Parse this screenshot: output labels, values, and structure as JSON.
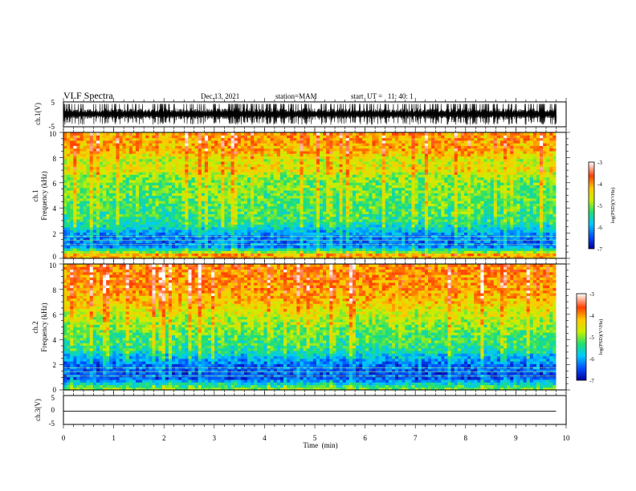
{
  "header": {
    "title": "VLF Spectra",
    "date": "Dec.13, 2021",
    "station": "station=MAM",
    "start_ut": "start  UT =   11: 40: 1"
  },
  "chart_data": [
    {
      "type": "line",
      "panel": "ch1-waveform",
      "ylabel": "ch.1(V)",
      "ylim": [
        -5,
        5
      ],
      "yticks": [
        "5",
        "-5"
      ],
      "signal": "dense impulsive VLF waveform filling approx. -4 to +4 V"
    },
    {
      "type": "heatmap",
      "panel": "ch1-spectrogram",
      "ylabel_line1": "ch.1",
      "ylabel_line2": "Frequency  (kHz)",
      "ylim": [
        0,
        10
      ],
      "yticks": [
        "0",
        "2",
        "4",
        "6",
        "8",
        "10"
      ],
      "colorbar": {
        "label": "log(PSD)(V²/Hz)",
        "range": [
          -7,
          -3
        ],
        "ticks": [
          "-3",
          "-4",
          "-5",
          "-6",
          "-7"
        ],
        "colors": [
          "#0000a0",
          "#0050ff",
          "#00c8ff",
          "#20e070",
          "#c8f000",
          "#ffc800",
          "#ff4000",
          "#ffffff"
        ]
      },
      "profile_khz": [
        [
          0,
          -4.2
        ],
        [
          0.3,
          -4.0
        ],
        [
          0.6,
          -5.2
        ],
        [
          1.0,
          -6.3
        ],
        [
          1.8,
          -6.2
        ],
        [
          2.4,
          -5.7
        ],
        [
          3.0,
          -5.3
        ],
        [
          4.5,
          -5.1
        ],
        [
          6.5,
          -4.9
        ],
        [
          7.0,
          -4.4
        ],
        [
          7.8,
          -4.6
        ],
        [
          8.5,
          -4.1
        ],
        [
          10,
          -3.9
        ]
      ]
    },
    {
      "type": "heatmap",
      "panel": "ch2-spectrogram",
      "ylabel_line1": "ch.2",
      "ylabel_line2": "Frequency  (kHz)",
      "ylim": [
        0,
        10
      ],
      "yticks": [
        "0",
        "2",
        "4",
        "6",
        "8",
        "10"
      ],
      "colorbar": {
        "label": "log(PSD)(V²/Hz)",
        "range": [
          -7,
          -3
        ],
        "ticks": [
          "-3",
          "-4",
          "-5",
          "-6",
          "-7"
        ],
        "colors": [
          "#0000a0",
          "#0050ff",
          "#00c8ff",
          "#20e070",
          "#c8f000",
          "#ffc800",
          "#ff4000",
          "#ffffff"
        ]
      },
      "profile_khz": [
        [
          0,
          -4.8
        ],
        [
          0.5,
          -5.6
        ],
        [
          1.0,
          -6.5
        ],
        [
          2.0,
          -6.3
        ],
        [
          2.6,
          -5.9
        ],
        [
          3.2,
          -5.4
        ],
        [
          4.5,
          -5.1
        ],
        [
          6.0,
          -4.6
        ],
        [
          7.0,
          -4.2
        ],
        [
          8.0,
          -3.9
        ],
        [
          10,
          -3.8
        ]
      ]
    },
    {
      "type": "line",
      "panel": "ch3-waveform",
      "ylabel": "ch.3(V)",
      "ylim": [
        -5,
        5
      ],
      "yticks": [
        "5",
        "0",
        "-5"
      ],
      "series": [
        {
          "x": [
            0,
            9.8
          ],
          "y": [
            -0.4,
            -0.4
          ]
        }
      ]
    }
  ],
  "x_axis": {
    "label": "Time  (min)",
    "range": [
      0,
      10
    ],
    "ticks": [
      "0",
      "1",
      "2",
      "3",
      "4",
      "5",
      "6",
      "7",
      "8",
      "9",
      "10"
    ],
    "data_end": 9.8
  }
}
